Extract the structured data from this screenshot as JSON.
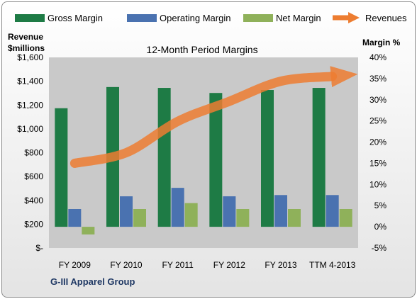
{
  "chart_data": {
    "type": "bar",
    "title": "12-Month Period Margins",
    "footer": "G-III Apparel Group",
    "categories": [
      "FY 2009",
      "FY 2010",
      "FY 2011",
      "FY 2012",
      "FY 2013",
      "TTM 4-2013"
    ],
    "series": [
      {
        "name": "Gross Margin",
        "type": "bar",
        "axis": "right",
        "color": "#1e7b45",
        "values": [
          28.0,
          33.0,
          32.8,
          31.6,
          32.3,
          32.8
        ]
      },
      {
        "name": "Operating Margin",
        "type": "bar",
        "axis": "right",
        "color": "#4a72b0",
        "values": [
          4.2,
          7.2,
          9.2,
          7.2,
          7.5,
          7.5
        ]
      },
      {
        "name": "Net Margin",
        "type": "bar",
        "axis": "right",
        "color": "#8fb15a",
        "values": [
          -1.8,
          4.2,
          5.6,
          4.2,
          4.2,
          4.2
        ]
      },
      {
        "name": "Revenues",
        "type": "line",
        "axis": "left",
        "color": "#ed7d31",
        "values": [
          711,
          800,
          1063,
          1231,
          1400,
          1440
        ]
      }
    ],
    "left_axis": {
      "label_line1": "Revenue",
      "label_line2": "$millions",
      "ylim": [
        0,
        1600
      ],
      "ticks": [
        {
          "value": 0,
          "label": "$-"
        },
        {
          "value": 200,
          "label": "$200"
        },
        {
          "value": 400,
          "label": "$400"
        },
        {
          "value": 600,
          "label": "$600"
        },
        {
          "value": 800,
          "label": "$800"
        },
        {
          "value": 1000,
          "label": "$1,000"
        },
        {
          "value": 1200,
          "label": "$1,200"
        },
        {
          "value": 1400,
          "label": "$1,400"
        },
        {
          "value": 1600,
          "label": "$1,600"
        }
      ]
    },
    "right_axis": {
      "label": "Margin  %",
      "ylim": [
        -5,
        40
      ],
      "ticks": [
        {
          "value": -5,
          "label": "-5%"
        },
        {
          "value": 0,
          "label": "0%"
        },
        {
          "value": 5,
          "label": "5%"
        },
        {
          "value": 10,
          "label": "10%"
        },
        {
          "value": 15,
          "label": "15%"
        },
        {
          "value": 20,
          "label": "20%"
        },
        {
          "value": 25,
          "label": "25%"
        },
        {
          "value": 30,
          "label": "30%"
        },
        {
          "value": 35,
          "label": "35%"
        },
        {
          "value": 40,
          "label": "40%"
        }
      ]
    },
    "legend_position": "top",
    "grid": false
  }
}
